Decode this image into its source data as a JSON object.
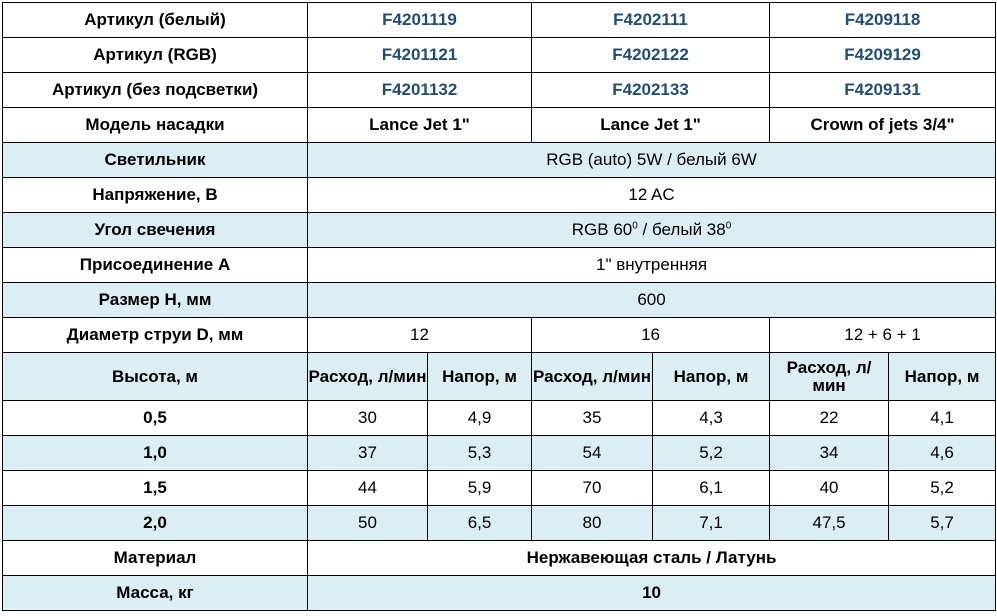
{
  "rows_articles": [
    {
      "label": "Артикул (белый)",
      "values": [
        "F4201119",
        "F4202111",
        "F4209118"
      ]
    },
    {
      "label": "Артикул (RGB)",
      "values": [
        "F4201121",
        "F4202122",
        "F4209129"
      ]
    },
    {
      "label": "Артикул (без подсветки)",
      "values": [
        "F4201132",
        "F4202133",
        "F4209131"
      ]
    }
  ],
  "model": {
    "label": "Модель насадки",
    "values": [
      "Lance Jet 1\"",
      "Lance Jet 1\"",
      "Crown of jets 3/4\""
    ]
  },
  "lamp": {
    "label": "Светильник",
    "value": "RGB (auto) 5W / белый 6W"
  },
  "voltage": {
    "label": "Напряжение, В",
    "value": "12 AC"
  },
  "angle": {
    "label": "Угол свечения",
    "rgb": "RGB 60",
    "rgb_sup": "0",
    "white": " / белый 38",
    "white_sup": "0"
  },
  "connection": {
    "label": "Присоединение А",
    "value": "1\" внутренняя"
  },
  "size": {
    "label": "Размер H, мм",
    "value": "600"
  },
  "diameter": {
    "label": "Диаметр струи D, мм",
    "values": [
      "12",
      "16",
      "12 + 6 + 1"
    ]
  },
  "height_header": {
    "label": "Высота, м",
    "flow": "Расход, л/мин",
    "head": "Напор, м"
  },
  "height_rows": [
    {
      "h": "0,5",
      "values": [
        "30",
        "4,9",
        "35",
        "4,3",
        "22",
        "4,1"
      ]
    },
    {
      "h": "1,0",
      "values": [
        "37",
        "5,3",
        "54",
        "5,2",
        "34",
        "4,6"
      ]
    },
    {
      "h": "1,5",
      "values": [
        "44",
        "5,9",
        "70",
        "6,1",
        "40",
        "5,2"
      ]
    },
    {
      "h": "2,0",
      "values": [
        "50",
        "6,5",
        "80",
        "7,1",
        "47,5",
        "5,7"
      ]
    }
  ],
  "material": {
    "label": "Материал",
    "value": "Нержавеющая сталь / Латунь"
  },
  "mass": {
    "label": "Масса, кг",
    "value": "10"
  },
  "colors": {
    "row_highlight": "#dbeef4",
    "article_code": "#1f4e79"
  }
}
